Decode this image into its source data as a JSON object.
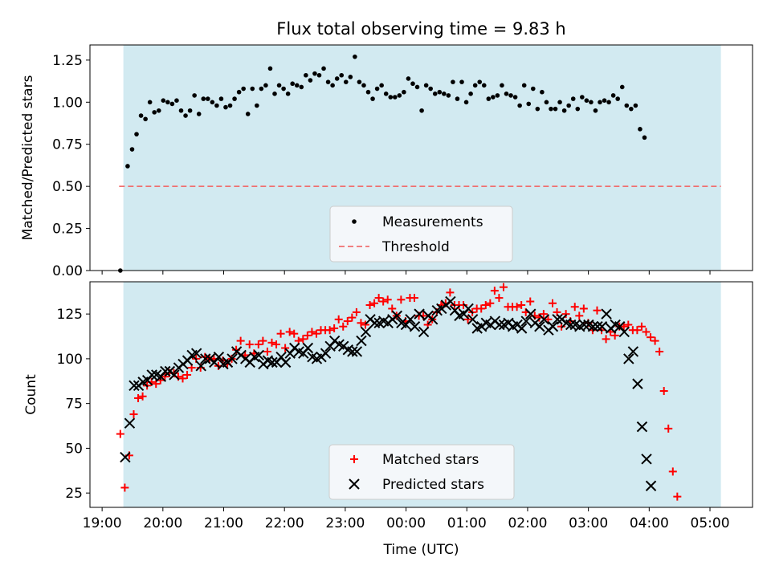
{
  "chart_data": [
    {
      "type": "scatter",
      "title": "Flux total observing time = 9.83 h",
      "xlabel": "",
      "ylabel": "Matched/Predicted stars",
      "ylim": [
        0,
        1.34
      ],
      "yticks": [
        "0.00",
        "0.25",
        "0.50",
        "0.75",
        "1.00",
        "1.25"
      ],
      "ytick_values": [
        0,
        0.25,
        0.5,
        0.75,
        1.0,
        1.25
      ],
      "observing_window_hours": [
        19.35,
        29.18
      ],
      "threshold": 0.5,
      "legend_position": "lower-center",
      "series": [
        {
          "name": "Measurements",
          "marker": "dot",
          "color": "#000000",
          "x_start": 19.42,
          "x_step": 0.0733,
          "values": [
            0.62,
            0.72,
            0.81,
            0.92,
            0.9,
            1.0,
            0.94,
            0.95,
            1.01,
            1.0,
            0.99,
            1.01,
            0.95,
            0.92,
            0.95,
            1.04,
            0.93,
            1.02,
            1.02,
            1.0,
            0.98,
            1.02,
            0.97,
            0.98,
            1.02,
            1.06,
            1.08,
            0.93,
            1.08,
            0.98,
            1.08,
            1.1,
            1.2,
            1.05,
            1.1,
            1.08,
            1.05,
            1.11,
            1.1,
            1.09,
            1.16,
            1.13,
            1.17,
            1.16,
            1.2,
            1.12,
            1.1,
            1.14,
            1.16,
            1.12,
            1.15,
            1.27,
            1.12,
            1.1,
            1.06,
            1.02,
            1.08,
            1.1,
            1.05,
            1.03,
            1.03,
            1.04,
            1.06,
            1.14,
            1.11,
            1.09,
            0.95,
            1.1,
            1.08,
            1.05,
            1.06,
            1.05,
            1.04,
            1.12,
            1.02,
            1.12,
            1.0,
            1.05,
            1.1,
            1.12,
            1.1,
            1.02,
            1.03,
            1.04,
            1.1,
            1.05,
            1.04,
            1.03,
            0.98,
            1.1,
            0.99,
            1.08,
            0.96,
            1.06,
            1.0,
            0.96,
            0.96,
            1.0,
            0.95,
            0.98,
            1.02,
            0.96,
            1.03,
            1.01,
            1.0,
            0.95,
            1.0,
            1.01,
            1.0,
            1.04,
            1.02,
            1.09,
            0.98,
            0.96,
            0.98,
            0.84,
            0.79
          ],
          "extra_points": [
            [
              19.3,
              0.0
            ]
          ]
        },
        {
          "name": "Threshold",
          "style": "dashed",
          "color": "#f07070"
        }
      ]
    },
    {
      "type": "scatter",
      "title": "",
      "xlabel": "Time (UTC)",
      "ylabel": "Count",
      "ylim": [
        17,
        143
      ],
      "xlim": [
        18.8,
        29.7
      ],
      "yticks": [
        "25",
        "50",
        "75",
        "100",
        "125"
      ],
      "ytick_values": [
        25,
        50,
        75,
        100,
        125
      ],
      "xticks": [
        "19:00",
        "20:00",
        "21:00",
        "22:00",
        "23:00",
        "00:00",
        "01:00",
        "02:00",
        "03:00",
        "04:00",
        "05:00"
      ],
      "xtick_values": [
        19,
        20,
        21,
        22,
        23,
        24,
        25,
        26,
        27,
        28,
        29
      ],
      "legend_position": "lower-center",
      "series": [
        {
          "name": "Matched stars",
          "marker": "plus",
          "color": "#ff0000",
          "x_start": 19.3,
          "x_step": 0.0733,
          "values": [
            58,
            28,
            46,
            69,
            78,
            79,
            85,
            87,
            86,
            88,
            90,
            92,
            92,
            90,
            89,
            91,
            95,
            100,
            95,
            101,
            100,
            100,
            96,
            99,
            97,
            100,
            105,
            110,
            102,
            108,
            103,
            108,
            110,
            104,
            109,
            108,
            114,
            106,
            115,
            114,
            110,
            111,
            113,
            115,
            114,
            116,
            116,
            116,
            117,
            122,
            118,
            121,
            123,
            126,
            120,
            119,
            130,
            131,
            134,
            132,
            133,
            128,
            124,
            133,
            121,
            134,
            134,
            124,
            124,
            119,
            122,
            126,
            130,
            131,
            137,
            130,
            130,
            130,
            122,
            126,
            128,
            128,
            130,
            131,
            138,
            134,
            140,
            129,
            129,
            129,
            130,
            126,
            132,
            124,
            123,
            125,
            122,
            131,
            126,
            118,
            125,
            121,
            129,
            124,
            128,
            120,
            116,
            127,
            116,
            111,
            115,
            113,
            118,
            118,
            119,
            116,
            116,
            118,
            115,
            112,
            110,
            104,
            82,
            61,
            37,
            23
          ]
        },
        {
          "name": "Predicted stars",
          "marker": "x",
          "color": "#000000",
          "x_start": 19.38,
          "x_step": 0.0733,
          "values": [
            45,
            64,
            85,
            85,
            87,
            88,
            91,
            91,
            90,
            93,
            93,
            91,
            95,
            97,
            99,
            102,
            103,
            96,
            100,
            100,
            98,
            101,
            97,
            98,
            100,
            104,
            102,
            100,
            98,
            101,
            102,
            97,
            99,
            98,
            98,
            101,
            98,
            103,
            106,
            104,
            103,
            106,
            101,
            100,
            101,
            103,
            107,
            110,
            108,
            107,
            105,
            104,
            104,
            110,
            115,
            122,
            120,
            120,
            121,
            120,
            122,
            124,
            120,
            119,
            122,
            118,
            125,
            115,
            124,
            122,
            127,
            128,
            130,
            132,
            127,
            124,
            125,
            128,
            122,
            117,
            118,
            120,
            119,
            121,
            119,
            119,
            120,
            118,
            119,
            117,
            121,
            125,
            120,
            118,
            122,
            116,
            118,
            122,
            122,
            120,
            119,
            119,
            118,
            119,
            119,
            118,
            118,
            118,
            125,
            117,
            119,
            118,
            115,
            100,
            104,
            86,
            62,
            44,
            29
          ]
        }
      ]
    }
  ]
}
